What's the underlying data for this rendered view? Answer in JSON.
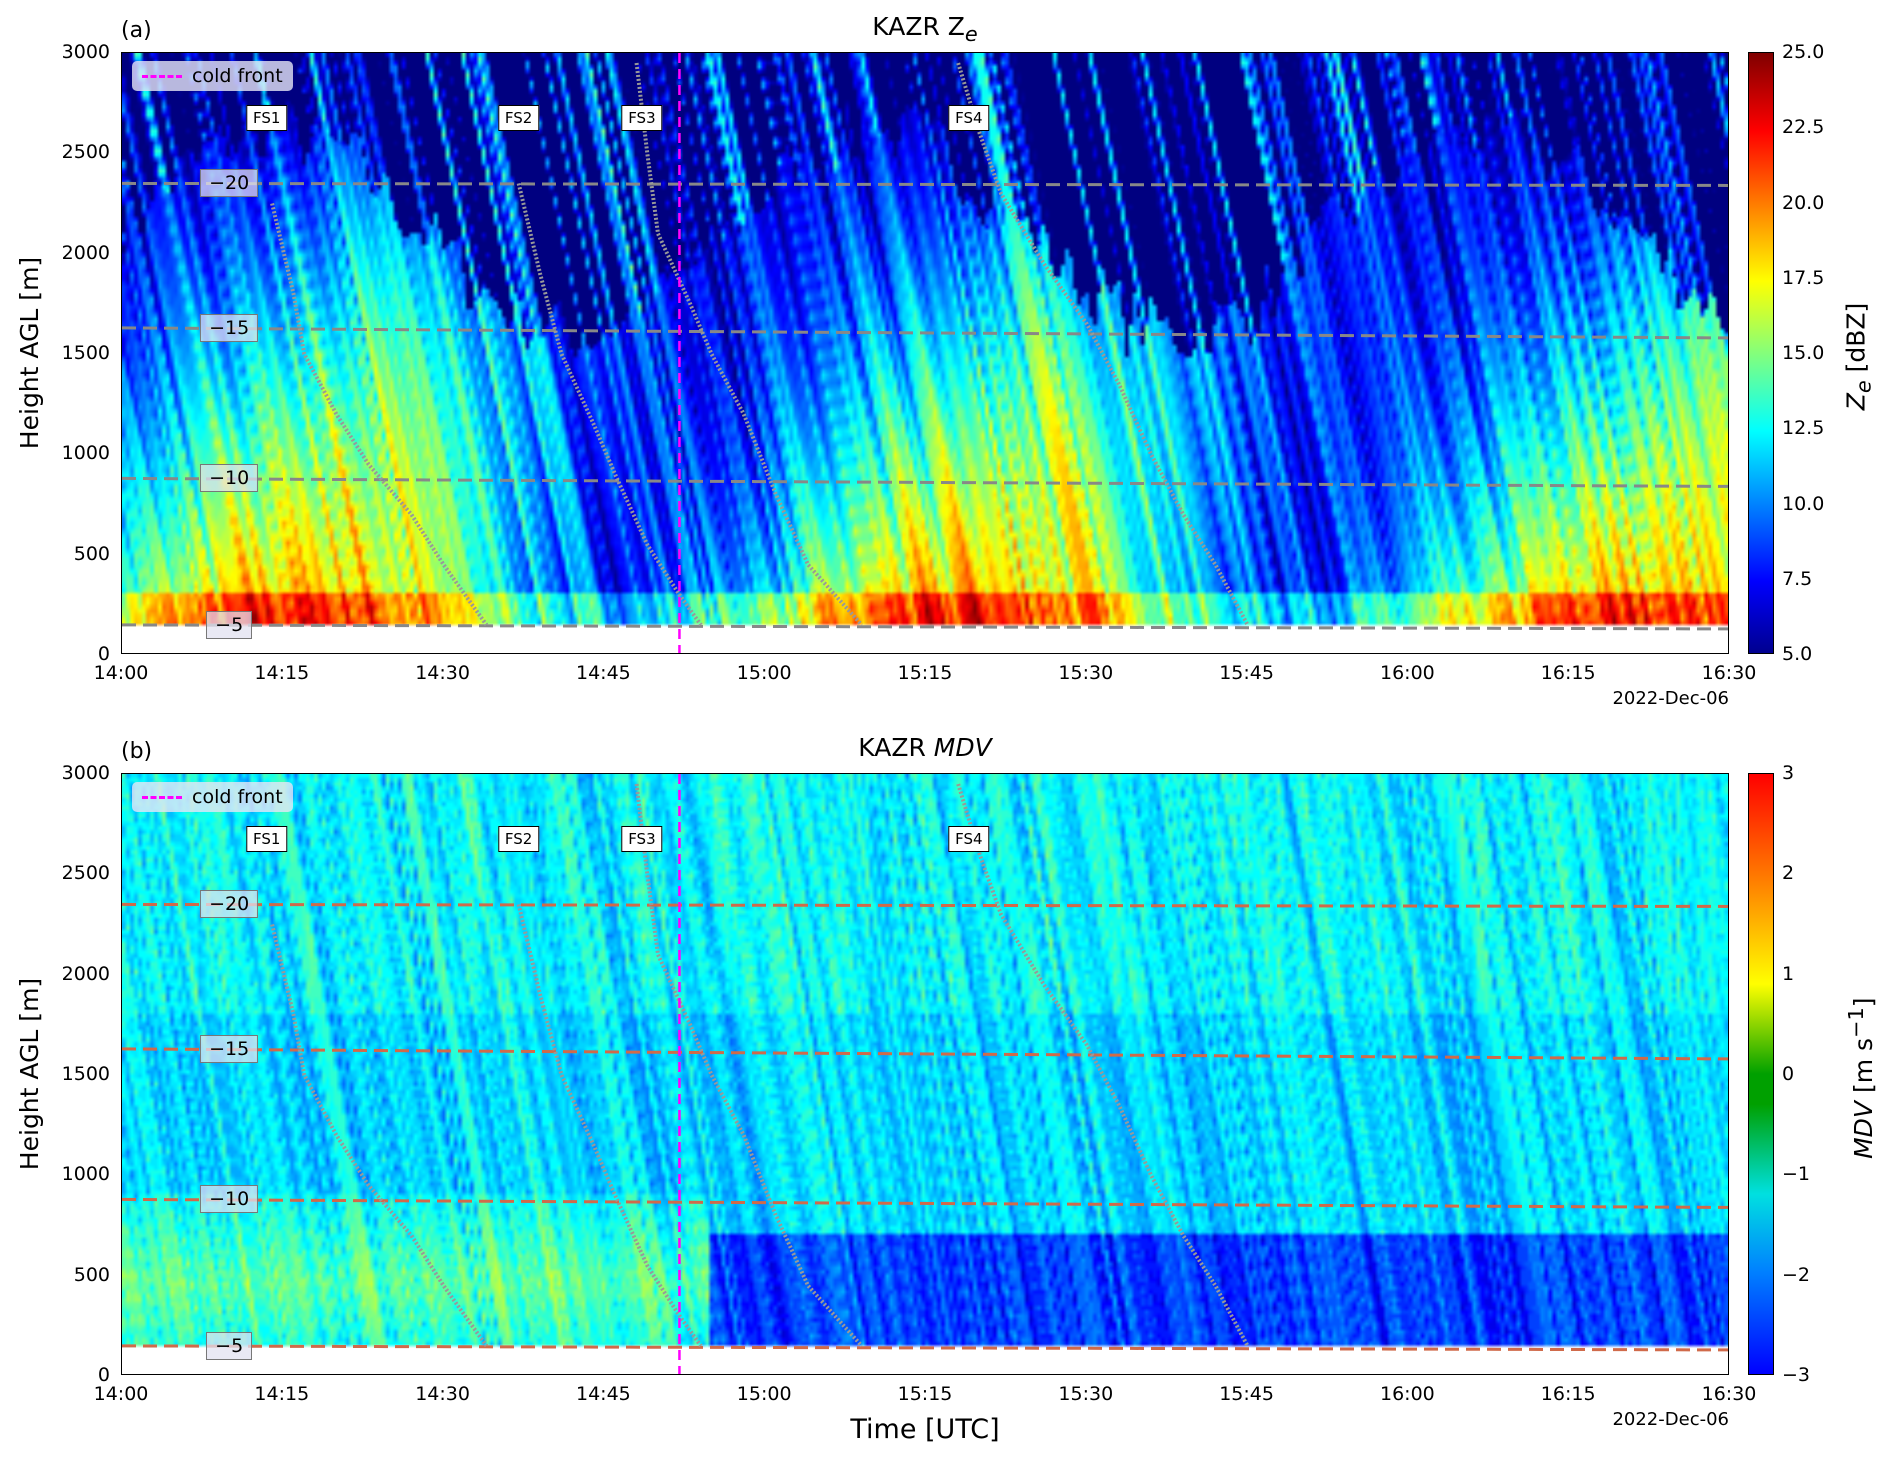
{
  "chart_data": [
    {
      "type": "heatmap",
      "panel_label": "(a)",
      "title": "KAZR Z",
      "title_sub": "e",
      "ylabel": "Height AGL [m]",
      "xlabel": "",
      "ylim": [
        0,
        3000
      ],
      "yticks": [
        "0",
        "500",
        "1000",
        "1500",
        "2000",
        "2500",
        "3000"
      ],
      "xticks": [
        "14:00",
        "14:15",
        "14:30",
        "14:45",
        "15:00",
        "15:15",
        "15:30",
        "15:45",
        "16:00",
        "16:15",
        "16:30"
      ],
      "xlim_minutes_after_1400": [
        0,
        150
      ],
      "date": "2022-Dec-06",
      "colorbar": {
        "label": "Z",
        "label_sub": "e",
        "label_unit": " [dBZ]",
        "range": [
          5,
          25
        ],
        "ticks": [
          "5.0",
          "7.5",
          "10.0",
          "12.5",
          "15.0",
          "17.5",
          "20.0",
          "22.5",
          "25.0"
        ],
        "colormap": "jet"
      },
      "legend": {
        "label": "cold front",
        "color": "#ff00ff"
      }
    },
    {
      "type": "heatmap",
      "panel_label": "(b)",
      "title": "KAZR ",
      "title_it": "MDV",
      "ylabel": "Height AGL [m]",
      "xlabel": "Time [UTC]",
      "ylim": [
        0,
        3000
      ],
      "yticks": [
        "0",
        "500",
        "1000",
        "1500",
        "2000",
        "2500",
        "3000"
      ],
      "xticks": [
        "14:00",
        "14:15",
        "14:30",
        "14:45",
        "15:00",
        "15:15",
        "15:30",
        "15:45",
        "16:00",
        "16:15",
        "16:30"
      ],
      "xlim_minutes_after_1400": [
        0,
        150
      ],
      "date": "2022-Dec-06",
      "colorbar": {
        "label": "MDV",
        "label_unit": " [m s",
        "label_sup": "−1",
        "label_end": "]",
        "range": [
          -3,
          3
        ],
        "ticks": [
          "−3",
          "−2",
          "−1",
          "0",
          "1",
          "2",
          "3"
        ],
        "colormap": "jet-discrete"
      },
      "legend": {
        "label": "cold front",
        "color": "#ff00ff"
      }
    }
  ],
  "cold_front_minute": 52,
  "fall_streaks": [
    {
      "label": "FS1",
      "label_minute": 13.5,
      "points": [
        [
          14,
          2250
        ],
        [
          16,
          1800
        ],
        [
          17,
          1500
        ],
        [
          20,
          1200
        ],
        [
          23,
          950
        ],
        [
          27,
          700
        ],
        [
          30,
          450
        ],
        [
          34,
          150
        ]
      ]
    },
    {
      "label": "FS2",
      "label_minute": 37,
      "points": [
        [
          37,
          2350
        ],
        [
          39,
          1900
        ],
        [
          41,
          1500
        ],
        [
          44,
          1150
        ],
        [
          46,
          900
        ],
        [
          49,
          550
        ],
        [
          52,
          300
        ],
        [
          54,
          150
        ]
      ]
    },
    {
      "label": "FS3",
      "label_minute": 48.5,
      "points": [
        [
          48,
          2950
        ],
        [
          49,
          2500
        ],
        [
          50,
          2100
        ],
        [
          53,
          1750
        ],
        [
          55,
          1500
        ],
        [
          58,
          1200
        ],
        [
          61,
          800
        ],
        [
          64,
          450
        ],
        [
          69,
          150
        ]
      ]
    },
    {
      "label": "FS4",
      "label_minute": 79,
      "points": [
        [
          78,
          2950
        ],
        [
          80,
          2600
        ],
        [
          82,
          2300
        ],
        [
          86,
          1950
        ],
        [
          90,
          1650
        ],
        [
          93,
          1350
        ],
        [
          96,
          1000
        ],
        [
          99,
          700
        ],
        [
          102,
          450
        ],
        [
          105,
          150
        ]
      ]
    }
  ],
  "isotherms": [
    {
      "label": "−20",
      "h0": 2350,
      "h1": 2340
    },
    {
      "label": "−15",
      "h0": 1630,
      "h1": 1580
    },
    {
      "label": "−10",
      "h0": 880,
      "h1": 840
    },
    {
      "label": "−5",
      "h0": 150,
      "h1": 130
    }
  ]
}
